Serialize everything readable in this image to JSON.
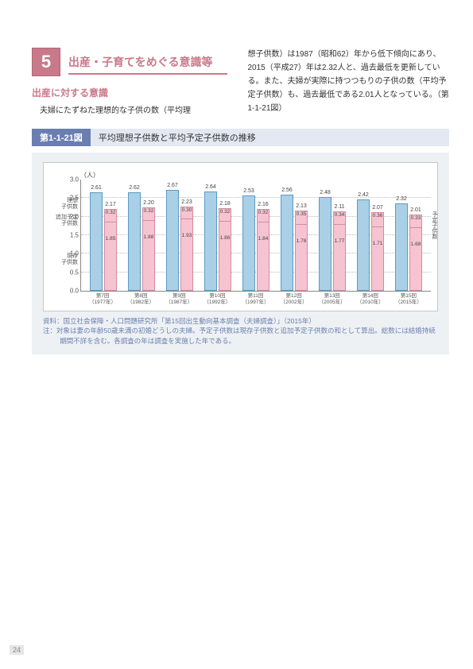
{
  "chapter": {
    "number": "5",
    "title": "出産・子育てをめぐる意識等"
  },
  "subsection_title": "出産に対する意識",
  "body": {
    "left": "夫婦にたずねた理想的な子供の数（平均理",
    "right": "想子供数）は1987（昭和62）年から低下傾向にあり、2015（平成27）年は2.32人と、過去最低を更新している。また、夫婦が実際に持つつもりの子供の数（平均予定子供数）も、過去最低である2.01人となっている。（第1-1-21図）"
  },
  "figure": {
    "label": "第1-1-21図",
    "title": "平均理想子供数と平均予定子供数の推移"
  },
  "chart": {
    "type": "bar",
    "y_unit": "（人）",
    "ylim": [
      0.0,
      3.0
    ],
    "ytick_step": 0.5,
    "background_color": "#ffffff",
    "grid_color": "#bbbbbb",
    "blue_color": "#a9d0e6",
    "pink_color": "#f5c4d0",
    "border_blue": "#5a9bc4",
    "border_pink": "#d68aa0",
    "legend": {
      "ideal": "理想\n子供数",
      "plan_add": "追加予定\n子供数",
      "plan_exist": "現存\n子供数"
    },
    "side_label": "予定子供数",
    "panel_bg": "#eef1f4",
    "categories": [
      {
        "line1": "第7回",
        "line2": "（1977年）"
      },
      {
        "line1": "第8回",
        "line2": "（1982年）"
      },
      {
        "line1": "第9回",
        "line2": "（1987年）"
      },
      {
        "line1": "第10回",
        "line2": "（1992年）"
      },
      {
        "line1": "第11回",
        "line2": "（1997年）"
      },
      {
        "line1": "第12回",
        "line2": "（2002年）"
      },
      {
        "line1": "第13回",
        "line2": "（2005年）"
      },
      {
        "line1": "第14回",
        "line2": "（2010年）"
      },
      {
        "line1": "第15回",
        "line2": "（2015年）"
      }
    ],
    "series": [
      {
        "ideal": 2.61,
        "plan": 2.17,
        "add": 0.32,
        "exist": 1.85
      },
      {
        "ideal": 2.62,
        "plan": 2.2,
        "add": 0.32,
        "exist": 1.88
      },
      {
        "ideal": 2.67,
        "plan": 2.23,
        "add": 0.3,
        "exist": 1.93
      },
      {
        "ideal": 2.64,
        "plan": 2.18,
        "add": 0.32,
        "exist": 1.86
      },
      {
        "ideal": 2.53,
        "plan": 2.16,
        "add": 0.32,
        "exist": 1.84
      },
      {
        "ideal": 2.56,
        "plan": 2.13,
        "add": 0.35,
        "exist": 1.78
      },
      {
        "ideal": 2.48,
        "plan": 2.11,
        "add": 0.34,
        "exist": 1.77
      },
      {
        "ideal": 2.42,
        "plan": 2.07,
        "add": 0.36,
        "exist": 1.71
      },
      {
        "ideal": 2.32,
        "plan": 2.01,
        "add": 0.33,
        "exist": 1.68
      }
    ]
  },
  "source": {
    "l1": "資料：国立社会保障・人口問題研究所「第15回出生動向基本調査（夫婦調査）」（2015年）",
    "l2": "注：対象は妻の年齢50歳未満の初婚どうしの夫婦。予定子供数は現存子供数と追加予定子供数の和として算出。総数には結婚持続期間不詳を含む。各調査の年は調査を実施した年である。"
  },
  "page_number": "24"
}
